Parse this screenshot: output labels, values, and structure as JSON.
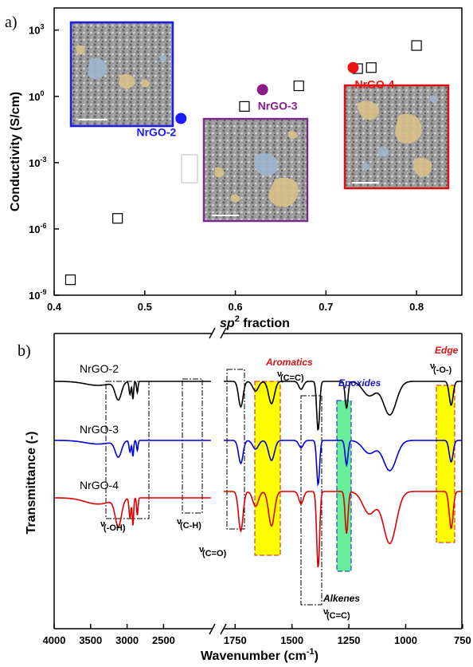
{
  "panel_a_letter": "a)",
  "panel_b_letter": "b)",
  "chart_data": [
    {
      "type": "scatter",
      "xlabel_main": "sp",
      "xlabel_sup": "2",
      "xlabel_rest": " fraction",
      "ylabel": "Conductivity (S/cm)",
      "xlim": [
        0.4,
        0.85
      ],
      "ylim_log10": [
        -9,
        4
      ],
      "y_scale": "log",
      "x_ticks": [
        "0.4",
        "0.5",
        "0.6",
        "0.7",
        "0.8"
      ],
      "y_ticks": [
        {
          "base": "10",
          "exp": "3",
          "log": 3
        },
        {
          "base": "10",
          "exp": "0",
          "log": 0
        },
        {
          "base": "10",
          "exp": "-3",
          "log": -3
        },
        {
          "base": "10",
          "exp": "-6",
          "log": -6
        },
        {
          "base": "10",
          "exp": "-9",
          "log": -9
        }
      ],
      "reference_points": [
        {
          "x": 0.418,
          "y": 5e-09
        },
        {
          "x": 0.47,
          "y": 3e-06
        },
        {
          "x": 0.61,
          "y": 0.35
        },
        {
          "x": 0.67,
          "y": 3.0
        },
        {
          "x": 0.735,
          "y": 18
        },
        {
          "x": 0.75,
          "y": 20
        },
        {
          "x": 0.8,
          "y": 200
        }
      ],
      "highlighted_points": [
        {
          "name": "NrGO-2",
          "x": 0.54,
          "y": 0.1,
          "color": "#1a1aff"
        },
        {
          "name": "NrGO-3",
          "x": 0.63,
          "y": 2.0,
          "color": "#8b1a8b"
        },
        {
          "name": "NrGO-4",
          "x": 0.73,
          "y": 20,
          "color": "#ee1111"
        }
      ],
      "inset_colors": [
        "#1a1aff",
        "#7a2a8a",
        "#dd1111"
      ]
    },
    {
      "type": "line",
      "xlabel_main": "Wavenumber (cm",
      "xlabel_sup": "-1",
      "xlabel_close": ")",
      "ylabel": "Transmittance (-)",
      "x_axis_reversed": true,
      "x_axis_break": [
        1800,
        1850
      ],
      "x_ticks": [
        "4000",
        "3500",
        "3000",
        "2500",
        "1750",
        "1500",
        "1250",
        "1000",
        "750"
      ],
      "series": [
        {
          "name": "NrGO-2",
          "color": "#000000"
        },
        {
          "name": "NrGO-3",
          "color": "#0000dd"
        },
        {
          "name": "NrGO-4",
          "color": "#dd0000"
        }
      ],
      "annotations": {
        "oh": "(-OH)",
        "ch": "(C-H)",
        "co": "(C=O)",
        "nu": "ν",
        "aromatics": "Aromatics",
        "aromatics_sub": "(C=C)",
        "epoxides": "Epoxides",
        "edge": "Edge",
        "edge_sub": "(-O-)",
        "alkenes": "Alkenes",
        "alkenes_sub": "(C=C)"
      },
      "highlight_colors": {
        "aromatics": "#ffff00",
        "epoxides": "#66ee99",
        "edge": "#ffff00",
        "label_red": "#dd1111",
        "label_blue": "#1a1acc"
      }
    }
  ]
}
